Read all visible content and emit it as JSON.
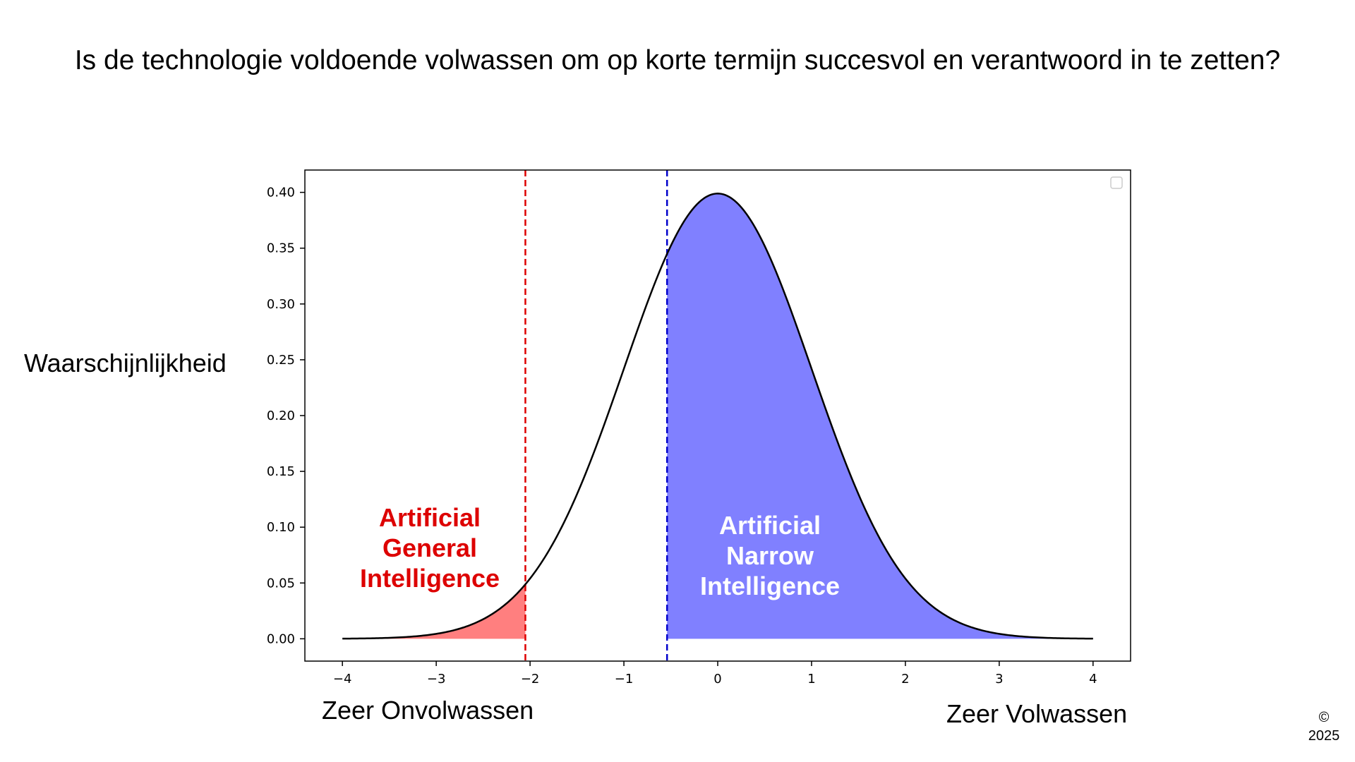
{
  "slide": {
    "title": "Is de technologie voldoende volwassen om op korte termijn succesvol en verantwoord in te zetten?",
    "ylabel": "Waarschijnlijkheid",
    "xlabel_left": "Zeer Onvolwassen",
    "xlabel_right": "Zeer Volwassen",
    "copyright_symbol": "©",
    "copyright_year": "2025"
  },
  "chart_data": {
    "type": "area",
    "curve": "standard normal probability density",
    "x_range": [
      -4,
      4
    ],
    "xlim": [
      -4.4,
      4.4
    ],
    "ylim": [
      -0.02,
      0.42
    ],
    "x_ticks": [
      -4,
      -3,
      -2,
      -1,
      0,
      1,
      2,
      3,
      4
    ],
    "x_tick_labels": [
      "−4",
      "−3",
      "−2",
      "−1",
      "0",
      "1",
      "2",
      "3",
      "4"
    ],
    "y_ticks": [
      0.0,
      0.05,
      0.1,
      0.15,
      0.2,
      0.25,
      0.3,
      0.35,
      0.4
    ],
    "y_tick_labels": [
      "0.00",
      "0.05",
      "0.10",
      "0.15",
      "0.20",
      "0.25",
      "0.30",
      "0.35",
      "0.40"
    ],
    "grid": false,
    "legend": "top-right (empty)",
    "thresholds": [
      {
        "x": -2.05,
        "color": "#dd0000",
        "style": "dashed"
      },
      {
        "x": -0.54,
        "color": "#0000cc",
        "style": "dashed"
      }
    ],
    "regions": [
      {
        "from": -4,
        "to": -2.05,
        "color": "#ff7f7f",
        "label_lines": [
          "Artificial",
          "General",
          "Intelligence"
        ],
        "label_color": "#dd0000"
      },
      {
        "from": -0.54,
        "to": 4,
        "color": "#8080ff",
        "label_lines": [
          "Artificial",
          "Narrow",
          "Intelligence"
        ],
        "label_color": "#ffffff"
      }
    ],
    "curve_color": "#000000"
  }
}
